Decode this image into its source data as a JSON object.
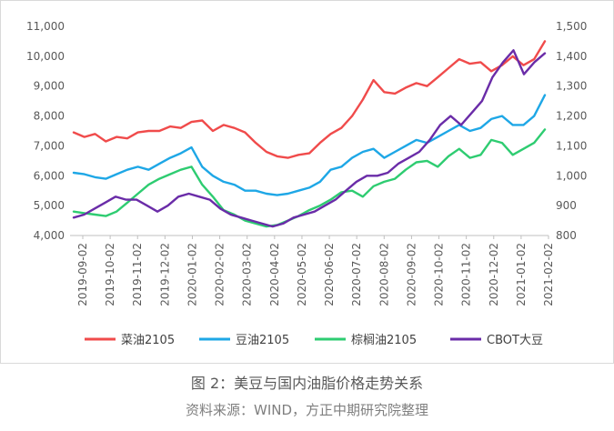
{
  "caption": {
    "title": "图 2：美豆与国内油脂价格走势关系",
    "source": "资料来源：WIND，方正中期研究院整理"
  },
  "chart_data": {
    "type": "line",
    "title": "",
    "xlabel": "",
    "ylabel": "",
    "grid": false,
    "legend_position": "bottom",
    "x_labels": [
      "2019-09-02",
      "2019-10-02",
      "2019-11-02",
      "2019-12-02",
      "2020-01-02",
      "2020-02-02",
      "2020-03-02",
      "2020-04-02",
      "2020-05-02",
      "2020-06-02",
      "2020-07-02",
      "2020-08-02",
      "2020-09-02",
      "2020-10-02",
      "2020-11-02",
      "2020-12-02",
      "2021-01-02",
      "2021-02-02"
    ],
    "y_left": {
      "min": 4000,
      "max": 11000,
      "ticks": [
        "4,000",
        "5,000",
        "6,000",
        "7,000",
        "8,000",
        "9,000",
        "10,000",
        "11,000"
      ]
    },
    "y_right": {
      "min": 800,
      "max": 1500,
      "ticks": [
        "800",
        "900",
        "1,000",
        "1,100",
        "1,200",
        "1,300",
        "1,400",
        "1,500"
      ]
    },
    "series": [
      {
        "name": "菜油2105",
        "color": "#f04b4b",
        "axis": "left",
        "values": [
          7450,
          7300,
          7400,
          7150,
          7300,
          7250,
          7450,
          7500,
          7500,
          7650,
          7600,
          7800,
          7850,
          7500,
          7700,
          7600,
          7450,
          7100,
          6800,
          6650,
          6600,
          6700,
          6750,
          7100,
          7400,
          7600,
          8000,
          8550,
          9200,
          8800,
          8750,
          8950,
          9100,
          9000,
          9300,
          9600,
          9900,
          9750,
          9800,
          9500,
          9700,
          10000,
          9700,
          9900,
          10500
        ]
      },
      {
        "name": "豆油2105",
        "color": "#1ea7e6",
        "axis": "left",
        "values": [
          6100,
          6050,
          5950,
          5900,
          6050,
          6200,
          6300,
          6200,
          6400,
          6600,
          6750,
          6950,
          6300,
          6000,
          5800,
          5700,
          5500,
          5500,
          5400,
          5350,
          5400,
          5500,
          5600,
          5800,
          6200,
          6300,
          6600,
          6800,
          6900,
          6600,
          6800,
          7000,
          7200,
          7100,
          7300,
          7500,
          7700,
          7500,
          7600,
          7900,
          8000,
          7700,
          7700,
          8000,
          8700
        ]
      },
      {
        "name": "棕榈油2105",
        "color": "#2ecc71",
        "axis": "left",
        "values": [
          4800,
          4750,
          4700,
          4650,
          4800,
          5100,
          5400,
          5700,
          5900,
          6050,
          6200,
          6300,
          5700,
          5300,
          4850,
          4700,
          4500,
          4400,
          4300,
          4350,
          4500,
          4650,
          4850,
          5000,
          5200,
          5450,
          5500,
          5300,
          5650,
          5800,
          5900,
          6200,
          6450,
          6500,
          6300,
          6650,
          6900,
          6600,
          6700,
          7200,
          7100,
          6700,
          6900,
          7100,
          7550
        ]
      },
      {
        "name": "CBOT大豆",
        "color": "#6a2ca8",
        "axis": "right",
        "values": [
          860,
          870,
          890,
          910,
          930,
          920,
          920,
          900,
          880,
          900,
          930,
          940,
          930,
          920,
          890,
          870,
          860,
          850,
          840,
          830,
          840,
          860,
          870,
          880,
          900,
          920,
          950,
          980,
          1000,
          1000,
          1010,
          1040,
          1060,
          1080,
          1120,
          1170,
          1200,
          1170,
          1210,
          1250,
          1330,
          1380,
          1420,
          1340,
          1380,
          1410
        ]
      }
    ]
  }
}
